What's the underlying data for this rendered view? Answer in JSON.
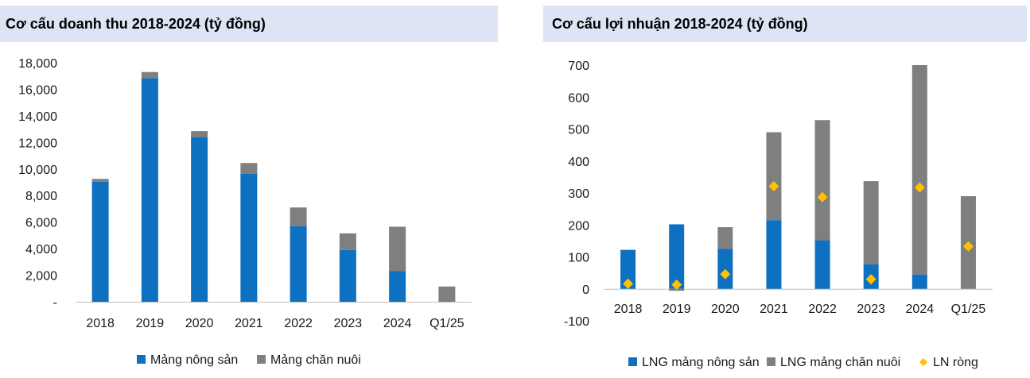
{
  "colors": {
    "blue": "#0e70c0",
    "gray": "#7f7f7f",
    "gold": "#ffc000",
    "title_bg": "#dde5f4"
  },
  "chart_data": [
    {
      "type": "bar",
      "stacked": true,
      "title": "Cơ cấu doanh thu 2018-2024 (tỷ đồng)",
      "categories": [
        "2018",
        "2019",
        "2020",
        "2021",
        "2022",
        "2023",
        "2024",
        "Q1/25"
      ],
      "ylim": [
        0,
        18000
      ],
      "yticks": [
        "-",
        "2,000",
        "4,000",
        "6,000",
        "8,000",
        "10,000",
        "12,000",
        "14,000",
        "16,000",
        "18,000"
      ],
      "series": [
        {
          "name": "Mảng nông sản",
          "values": [
            9050,
            16850,
            12400,
            9650,
            5700,
            3900,
            2300,
            0
          ]
        },
        {
          "name": "Mảng chăn nuôi",
          "values": [
            200,
            450,
            450,
            800,
            1400,
            1250,
            3350,
            1150
          ]
        }
      ],
      "legend": "bottom",
      "grid": false
    },
    {
      "type": "bar",
      "stacked": true,
      "title": "Cơ cấu lợi nhuận 2018-2024 (tỷ đồng)",
      "categories": [
        "2018",
        "2019",
        "2020",
        "2021",
        "2022",
        "2023",
        "2024",
        "Q1/25"
      ],
      "ylim": [
        -100,
        700
      ],
      "yticks": [
        "-100",
        "0",
        "100",
        "200",
        "300",
        "400",
        "500",
        "600",
        "700"
      ],
      "series": [
        {
          "name": "LNG mảng nông sản",
          "type": "bar",
          "values": [
            122,
            202,
            125,
            215,
            152,
            77,
            45,
            0
          ]
        },
        {
          "name": "LNG mảng chăn nuôi",
          "type": "bar",
          "values": [
            0,
            -6,
            68,
            275,
            376,
            260,
            655,
            290
          ]
        },
        {
          "name": "LN ròng",
          "type": "scatter",
          "marker": "diamond",
          "values": [
            16,
            13,
            46,
            321,
            287,
            30,
            317,
            133
          ]
        }
      ],
      "legend": "bottom",
      "grid": false
    }
  ]
}
